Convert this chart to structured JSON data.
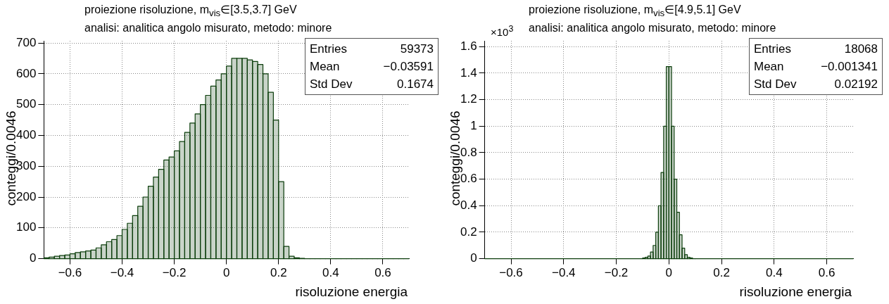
{
  "chart_data": [
    {
      "type": "histogram",
      "title": "proiezione risoluzione, m$_{vis}$∈[3.5,3.7] GeV",
      "subtitle": "analisi: analitica angolo misurato, metodo: minore",
      "xlabel": "risoluzione energia",
      "ylabel": "conteggi/0.0046",
      "bins": [
        -0.7,
        -0.68,
        -0.66,
        -0.64,
        -0.62,
        -0.6,
        -0.58,
        -0.56,
        -0.54,
        -0.52,
        -0.5,
        -0.48,
        -0.46,
        -0.44,
        -0.42,
        -0.4,
        -0.38,
        -0.36,
        -0.34,
        -0.32,
        -0.3,
        -0.28,
        -0.26,
        -0.24,
        -0.22,
        -0.2,
        -0.18,
        -0.16,
        -0.14,
        -0.12,
        -0.1,
        -0.08,
        -0.06,
        -0.04,
        -0.02,
        0,
        0.02,
        0.04,
        0.06,
        0.08,
        0.1,
        0.12,
        0.14,
        0.16,
        0.18,
        0.2,
        0.22,
        0.24,
        0.26,
        0.28,
        0.3,
        0.32,
        0.34,
        0.36,
        0.38,
        0.4,
        0.42,
        0.44,
        0.46,
        0.48,
        0.5,
        0.52,
        0.54,
        0.56,
        0.58,
        0.6,
        0.62,
        0.64,
        0.66,
        0.68,
        0.7
      ],
      "values": [
        3,
        5,
        8,
        10,
        12,
        16,
        20,
        22,
        25,
        28,
        35,
        45,
        55,
        62,
        75,
        95,
        115,
        140,
        170,
        200,
        235,
        265,
        290,
        320,
        330,
        350,
        380,
        410,
        440,
        470,
        500,
        530,
        560,
        580,
        600,
        625,
        650,
        650,
        650,
        645,
        640,
        630,
        600,
        540,
        450,
        250,
        40,
        8,
        3,
        1,
        0,
        0,
        0,
        0,
        0,
        0,
        0,
        0,
        0,
        0,
        0,
        0,
        0,
        0,
        0,
        0,
        0,
        0,
        0,
        0
      ],
      "color": "#0b3d0b",
      "xlim": [
        -0.7,
        0.7
      ],
      "ylim": [
        0,
        707
      ],
      "xticks": [
        {
          "value": -0.6,
          "label": "−0.6"
        },
        {
          "value": -0.4,
          "label": "−0.4"
        },
        {
          "value": -0.2,
          "label": "−0.2"
        },
        0,
        0.2,
        0.4,
        0.6
      ],
      "yticks": [
        0,
        100,
        200,
        300,
        400,
        500,
        600,
        700
      ],
      "grid": true,
      "annotations": [
        "Entries",
        "59373",
        "Mean",
        "−0.03591",
        "Std Dev",
        "0.1674"
      ]
    },
    {
      "type": "histogram",
      "title": "proiezione risoluzione, m$_{vis}$∈[4.9,5.1] GeV",
      "subtitle": "analisi: analitica angolo misurato, metodo: minore",
      "xlabel": "risoluzione energia",
      "ylabel": "conteggi/0.0046",
      "bins": [
        -0.7,
        -0.1,
        -0.09,
        -0.08,
        -0.07,
        -0.06,
        -0.05,
        -0.04,
        -0.03,
        -0.02,
        -0.01,
        0,
        0.01,
        0.02,
        0.03,
        0.04,
        0.05,
        0.06,
        0.07,
        0.08,
        0.09,
        0.1,
        0.7
      ],
      "values": [
        0,
        0.005,
        0.01,
        0.02,
        0.05,
        0.1,
        0.2,
        0.4,
        0.65,
        1.0,
        1.45,
        1.45,
        1.0,
        0.6,
        0.35,
        0.18,
        0.08,
        0.03,
        0.01,
        0.005,
        0,
        0
      ],
      "color": "#0b3d0b",
      "xlim": [
        -0.7,
        0.7
      ],
      "ylim": [
        0,
        1.644
      ],
      "xticks": [
        {
          "value": -0.6,
          "label": "−0.6"
        },
        {
          "value": -0.4,
          "label": "−0.4"
        },
        {
          "value": -0.2,
          "label": "−0.2"
        },
        0,
        0.2,
        0.4,
        0.6
      ],
      "yticks": [
        0,
        0.2,
        0.4,
        0.6,
        0.8,
        1,
        1.2,
        1.4,
        1.6
      ],
      "grid": true,
      "annotations": [
        "×10$^{3}$",
        "Entries",
        "18068",
        "Mean",
        "−0.001341",
        "Std Dev",
        "0.02192"
      ]
    }
  ]
}
